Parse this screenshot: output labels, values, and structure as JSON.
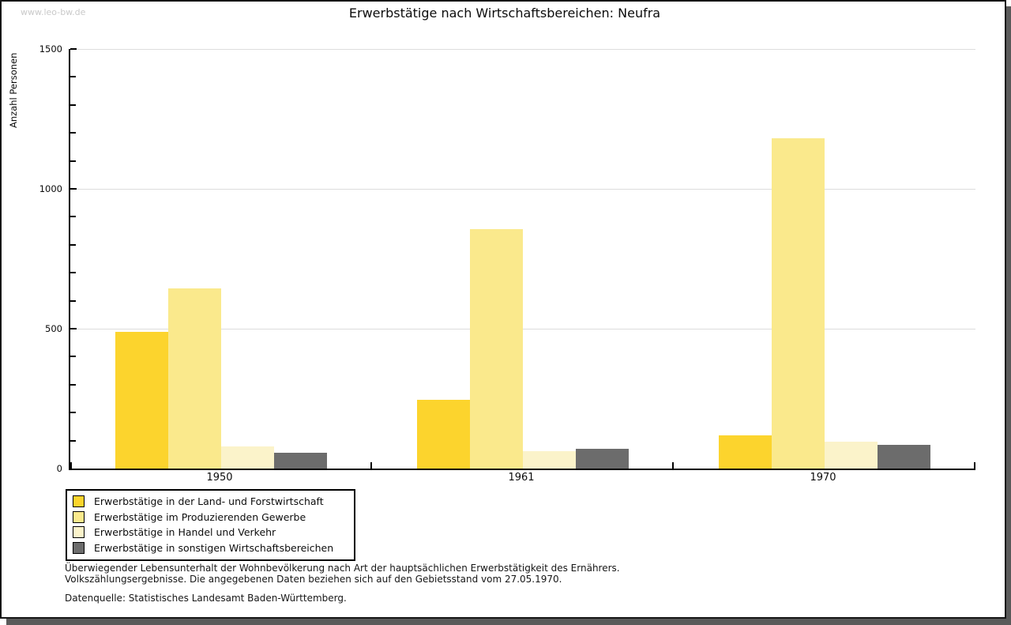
{
  "watermark": "www.leo-bw.de",
  "title": "Erwerbstätige nach Wirtschaftsbereichen: Neufra",
  "chart_data": {
    "type": "bar",
    "title": "Erwerbstätige nach Wirtschaftsbereichen: Neufra",
    "xlabel": "",
    "ylabel": "Anzahl Personen",
    "categories": [
      "1950",
      "1961",
      "1970"
    ],
    "series": [
      {
        "name": "Erwerbstätige in der Land- und Forstwirtschaft",
        "color": "#FCD42D",
        "values": [
          490,
          245,
          120
        ]
      },
      {
        "name": "Erwerbstätige im Produzierenden Gewerbe",
        "color": "#FAE98C",
        "values": [
          645,
          855,
          1180
        ]
      },
      {
        "name": "Erwerbstätige in Handel und Verkehr",
        "color": "#FBF3CA",
        "values": [
          78,
          62,
          96
        ]
      },
      {
        "name": "Erwerbstätige in sonstigen Wirtschaftsbereichen",
        "color": "#6C6C6C",
        "values": [
          56,
          70,
          85
        ]
      }
    ],
    "ylim": [
      0,
      1500
    ],
    "yticks_major": [
      0,
      500,
      1000,
      1500
    ],
    "ytick_minor_step": 100,
    "gridline_values": [
      500,
      1000,
      1500
    ],
    "grid": "horizontal",
    "legend_position": "bottom-left"
  },
  "footer": {
    "note_line1": "Überwiegender Lebensunterhalt der Wohnbevölkerung nach Art der hauptsächlichen Erwerbstätigkeit des Ernährers.",
    "note_line2": "Volkszählungsergebnisse. Die angegebenen Daten beziehen sich auf den Gebietsstand vom 27.05.1970.",
    "source": "Datenquelle: Statistisches Landesamt Baden-Württemberg."
  },
  "colors": {
    "axis": "#000000",
    "gridline": "#dddddd",
    "watermark": "#c9c9c9",
    "shadow": "#5a5a5a",
    "background": "#ffffff"
  }
}
